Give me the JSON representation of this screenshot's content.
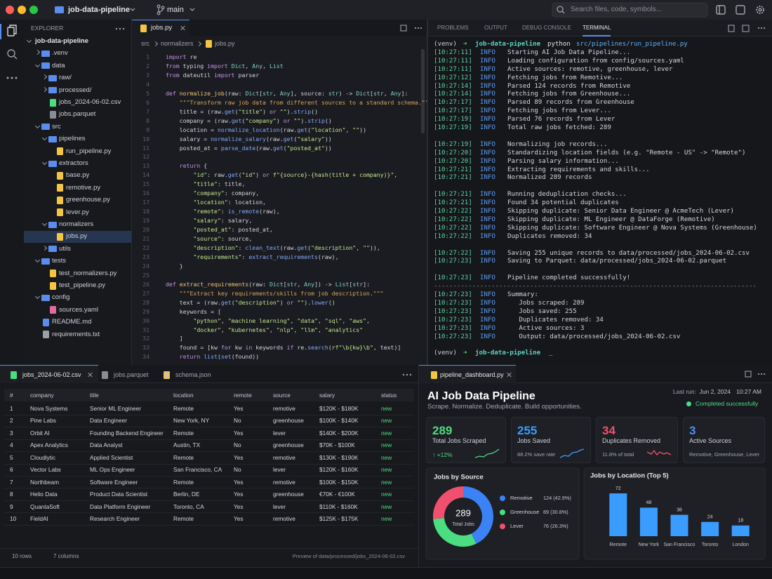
{
  "titlebar": {
    "repo": "job-data-pipeline",
    "branch": "main",
    "search": "Search files, code, symbols..."
  },
  "explorer": {
    "title": "EXPLORER",
    "tree": {
      "name": "job-data-pipeline",
      "open": true,
      "children": [
        {
          "name": ".venv",
          "open": false
        },
        {
          "name": "data",
          "open": true,
          "children": [
            {
              "name": "raw/",
              "open": false
            },
            {
              "name": "processed/",
              "open": false
            },
            {
              "name": "jobs_2024-06-02.csv"
            },
            {
              "name": "jobs.parquet"
            }
          ]
        },
        {
          "name": "src",
          "open": true,
          "children": [
            {
              "name": "pipelines",
              "open": true,
              "children": [
                {
                  "name": "run_pipeline.py"
                }
              ]
            },
            {
              "name": "extractors",
              "open": true,
              "children": [
                {
                  "name": "base.py"
                },
                {
                  "name": "remotive.py"
                },
                {
                  "name": "greenhouse.py"
                },
                {
                  "name": "lever.py"
                }
              ]
            },
            {
              "name": "normalizers",
              "open": true,
              "children": [
                {
                  "name": "jobs.py",
                  "selected": true
                }
              ]
            },
            {
              "name": "utils",
              "open": false
            }
          ]
        },
        {
          "name": "tests",
          "open": true,
          "children": [
            {
              "name": "test_normalizers.py"
            },
            {
              "name": "test_pipeline.py"
            }
          ]
        },
        {
          "name": "config",
          "open": true,
          "children": [
            {
              "name": "sources.yaml"
            }
          ]
        },
        {
          "name": "README.md"
        },
        {
          "name": "requirements.txt"
        }
      ]
    }
  },
  "editor": {
    "tab": "jobs.py",
    "breadcrumb": [
      "src",
      "normalizers",
      "jobs.py"
    ],
    "lines": [
      {
        "n": 1,
        "text": "import re"
      },
      {
        "n": 2,
        "text": "from typing import Dict, Any, List"
      },
      {
        "n": 3,
        "text": "from dateutil import parser"
      },
      {
        "n": 4
      },
      {
        "n": 5,
        "text": "def normalize_job(raw: Dict[str, Any], source: str) -> Dict[str, Any]:"
      },
      {
        "n": 6,
        "text": "    \"\"\"Transform raw job data from different sources to a standard schema.\"\"\""
      },
      {
        "n": 7,
        "text": "    title = (raw.get(\"title\") or \"\").strip()"
      },
      {
        "n": 8,
        "text": "    company = (raw.get(\"company\") or \"\").strip()"
      },
      {
        "n": 9,
        "text": "    location = normalize_location(raw.get(\"location\", \"\"))"
      },
      {
        "n": 10,
        "text": "    salary = normalize_salary(raw.get(\"salary\"))"
      },
      {
        "n": 11,
        "text": "    posted_at = parse_date(raw.get(\"posted_at\"))"
      },
      {
        "n": 12
      },
      {
        "n": 13,
        "text": "    return {"
      },
      {
        "n": 14,
        "text": "        \"id\": raw.get(\"id\") or f\"{source}-{hash(title + company)}\","
      },
      {
        "n": 15,
        "text": "        \"title\": title,"
      },
      {
        "n": 16,
        "text": "        \"company\": company,"
      },
      {
        "n": 17,
        "text": "        \"location\": location,"
      },
      {
        "n": 18,
        "text": "        \"remote\": is_remote(raw),"
      },
      {
        "n": 19,
        "text": "        \"salary\": salary,"
      },
      {
        "n": 20,
        "text": "        \"posted_at\": posted_at,"
      },
      {
        "n": 21,
        "text": "        \"source\": source,"
      },
      {
        "n": 22,
        "text": "        \"description\": clean_text(raw.get(\"description\", \"\")),"
      },
      {
        "n": 23,
        "text": "        \"requirements\": extract_requirements(raw),"
      },
      {
        "n": 24,
        "text": "    }"
      },
      {
        "n": 25
      },
      {
        "n": 26,
        "text": "def extract_requirements(raw: Dict[str, Any]) -> List[str]:"
      },
      {
        "n": 27,
        "text": "    \"\"\"Extract key requirements/skills from job description.\"\"\""
      },
      {
        "n": 28,
        "text": "    text = (raw.get(\"description\") or \"\").lower()"
      },
      {
        "n": 29,
        "text": "    keywords = ["
      },
      {
        "n": 30,
        "text": "        \"python\", \"machine learning\", \"data\", \"sql\", \"aws\","
      },
      {
        "n": 31,
        "text": "        \"docker\", \"kubernetes\", \"nlp\", \"llm\", \"analytics\""
      },
      {
        "n": 32,
        "text": "    ]"
      },
      {
        "n": 33,
        "text": "    found = [kw for kw in keywords if re.search(rf\"\\b{kw}\\b\", text)]"
      },
      {
        "n": 34,
        "text": "    return list(set(found))"
      }
    ]
  },
  "terminal": {
    "tabs": [
      "PROBLEMS",
      "OUTPUT",
      "DEBUG CONSOLE",
      "TERMINAL"
    ],
    "active_tab": 3,
    "command": {
      "env": "(venv)",
      "arrow": "➜",
      "dir": "job-data-pipeline",
      "cmd": "python",
      "arg": "src/pipelines/run_pipeline.py"
    },
    "blocks": [
      [
        {
          "time": "[10:27:11]",
          "level": "INFO",
          "msg": "Starting AI Job Data Pipeline..."
        },
        {
          "time": "[10:27:11]",
          "level": "INFO",
          "msg": "Loading configuration from config/sources.yaml"
        },
        {
          "time": "[10:27:11]",
          "level": "INFO",
          "msg": "Active sources: remotive, greenhouse, lever"
        },
        {
          "time": "[10:27:12]",
          "level": "INFO",
          "msg": "Fetching jobs from Remotive..."
        },
        {
          "time": "[10:27:14]",
          "level": "INFO",
          "msg": "Parsed 124 records from Remotive"
        },
        {
          "time": "[10:27:14]",
          "level": "INFO",
          "msg": "Fetching jobs from Greenhouse..."
        },
        {
          "time": "[10:27:17]",
          "level": "INFO",
          "msg": "Parsed 89 records from Greenhouse"
        },
        {
          "time": "[10:27:17]",
          "level": "INFO",
          "msg": "Fetching jobs from Lever..."
        },
        {
          "time": "[10:27:19]",
          "level": "INFO",
          "msg": "Parsed 76 records from Lever"
        },
        {
          "time": "[10:27:19]",
          "level": "INFO",
          "msg": "Total raw jobs fetched: 289"
        }
      ],
      [
        {
          "time": "[10:27:19]",
          "level": "INFO",
          "msg": "Normalizing job records..."
        },
        {
          "time": "[10:27:20]",
          "level": "INFO",
          "msg": "Standardizing location fields (e.g. \"Remote - US\" -> \"Remote\")"
        },
        {
          "time": "[10:27:20]",
          "level": "INFO",
          "msg": "Parsing salary information..."
        },
        {
          "time": "[10:27:21]",
          "level": "INFO",
          "msg": "Extracting requirements and skills..."
        },
        {
          "time": "[10:27:21]",
          "level": "INFO",
          "msg": "Normalized 289 records"
        }
      ],
      [
        {
          "time": "[10:27:21]",
          "level": "INFO",
          "msg": "Running deduplication checks..."
        },
        {
          "time": "[10:27:21]",
          "level": "INFO",
          "msg": "Found 34 potential duplicates"
        },
        {
          "time": "[10:27:22]",
          "level": "INFO",
          "msg": "Skipping duplicate: Senior Data Engineer @ AcmeTech (Lever)"
        },
        {
          "time": "[10:27:22]",
          "level": "INFO",
          "msg": "Skipping duplicate: ML Engineer @ DataForge (Remotive)"
        },
        {
          "time": "[10:27:22]",
          "level": "INFO",
          "msg": "Skipping duplicate: Software Engineer @ Nova Systems (Greenhouse)"
        },
        {
          "time": "[10:27:22]",
          "level": "INFO",
          "msg": "Duplicates removed: 34"
        }
      ],
      [
        {
          "time": "[10:27:22]",
          "level": "INFO",
          "msg": "Saving 255 unique records to data/processed/jobs_2024-06-02.csv"
        },
        {
          "time": "[10:27:23]",
          "level": "INFO",
          "msg": "Saving to Parquet: data/processed/jobs_2024-06-02.parquet"
        }
      ],
      [
        {
          "time": "[10:27:23]",
          "level": "INFO",
          "msg": "Pipeline completed successfully!"
        },
        {
          "text": "------------------------------------------------------------------------------------"
        },
        {
          "time": "[10:27:23]",
          "level": "INFO",
          "msg": "Summary:"
        },
        {
          "time": "[10:27:23]",
          "level": "INFO",
          "msg": "   Jobs scraped: 289"
        },
        {
          "time": "[10:27:23]",
          "level": "INFO",
          "msg": "   Jobs saved: 255"
        },
        {
          "time": "[10:27:23]",
          "level": "INFO",
          "msg": "   Duplicates removed: 34"
        },
        {
          "time": "[10:27:23]",
          "level": "INFO",
          "msg": "   Active sources: 3"
        },
        {
          "time": "[10:27:23]",
          "level": "INFO",
          "msg": "   Output: data/processed/jobs_2024-06-02.csv"
        }
      ]
    ],
    "prompt": {
      "env": "(venv)",
      "arrow": "➜",
      "dir": "job-data-pipeline",
      "cursor": "_"
    }
  },
  "table": {
    "tabs": [
      "jobs_2024-06-02.csv",
      "jobs.parquet",
      "schema.json"
    ],
    "columns": [
      "#",
      "company",
      "title",
      "location",
      "remote",
      "source",
      "salary",
      "status"
    ],
    "rows": [
      [
        1,
        "Nova Systems",
        "Senior ML Engineer",
        "Remote",
        "Yes",
        "remotive",
        "$120K - $180K",
        "new"
      ],
      [
        2,
        "Pine Labs",
        "Data Engineer",
        "New York, NY",
        "No",
        "greenhouse",
        "$100K - $140K",
        "new"
      ],
      [
        3,
        "Orbit AI",
        "Founding Backend Engineer",
        "Remote",
        "Yes",
        "lever",
        "$140K - $200K",
        "new"
      ],
      [
        4,
        "Apex Analytics",
        "Data Analyst",
        "Austin, TX",
        "No",
        "greenhouse",
        "$70K - $100K",
        "new"
      ],
      [
        5,
        "Cloudlytic",
        "Applied Scientist",
        "Remote",
        "Yes",
        "remotive",
        "$130K - $190K",
        "new"
      ],
      [
        6,
        "Vector Labs",
        "ML Ops Engineer",
        "San Francisco, CA",
        "No",
        "lever",
        "$120K - $160K",
        "new"
      ],
      [
        7,
        "Northbeam",
        "Software Engineer",
        "Remote",
        "Yes",
        "remotive",
        "$100K - $150K",
        "new"
      ],
      [
        8,
        "Helio Data",
        "Product Data Scientist",
        "Berlin, DE",
        "Yes",
        "greenhouse",
        "€70K - €100K",
        "new"
      ],
      [
        9,
        "QuantaSoft",
        "Data Platform Engineer",
        "Toronto, CA",
        "Yes",
        "lever",
        "$110K - $160K",
        "new"
      ],
      [
        10,
        "FieldAI",
        "Research Engineer",
        "Remote",
        "Yes",
        "remotive",
        "$125K - $175K",
        "new"
      ]
    ],
    "footer": {
      "rows": "10 rows",
      "columns": "7 columns",
      "note": "Preview of data/processed/jobs_2024-06-02.csv"
    }
  },
  "dashboard": {
    "tab": "pipeline_dashboard.py",
    "title": "AI Job Data Pipeline",
    "subtitle": "Scrape. Normalize. Deduplicate. Build opportunities.",
    "last_run_label": "Last run:",
    "last_run_date": "Jun 2, 2024",
    "last_run_time": "10:27 AM",
    "status": "Completed successfully",
    "cards": [
      {
        "value": 289,
        "label": "Total Jobs Scraped",
        "note": "↑ +12%",
        "color": "#4ade80",
        "note_color": "#4ade80"
      },
      {
        "value": 255,
        "label": "Jobs Saved",
        "note": "88.2% save rate",
        "color": "#3b9cff",
        "note_color": "#a3a7b0"
      },
      {
        "value": 34,
        "label": "Duplicates Removed",
        "note": "11.8% of total",
        "color": "#f0506e",
        "note_color": "#a3a7b0"
      },
      {
        "value": 3,
        "label": "Active Sources",
        "note": "Remotive, Greenhouse, Lever",
        "color": "#4f8dff",
        "note_color": "#a3a7b0"
      }
    ]
  },
  "chart_data": [
    {
      "type": "pie",
      "title": "Jobs by Source",
      "categories": [
        "Remotive",
        "Greenhouse",
        "Lever"
      ],
      "values": [
        124,
        89,
        76
      ],
      "value_labels": [
        "124 (42.9%)",
        "89 (30.8%)",
        "76 (26.3%)"
      ],
      "colors": [
        "#3b82f6",
        "#4ade80",
        "#f0506e"
      ],
      "center_value": 289,
      "center_label": "Total Jobs"
    },
    {
      "type": "bar",
      "title": "Jobs by Location (Top 5)",
      "categories": [
        "Remote",
        "New York",
        "San Francisco",
        "Toronto",
        "London"
      ],
      "values": [
        72,
        48,
        36,
        24,
        18
      ],
      "color": "#3b9cff"
    }
  ]
}
